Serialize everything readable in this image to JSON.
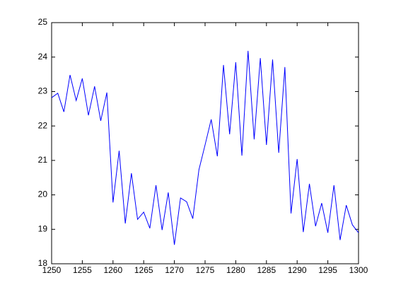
{
  "chart_data": {
    "type": "line",
    "x": [
      1250,
      1251,
      1252,
      1253,
      1254,
      1255,
      1256,
      1257,
      1258,
      1259,
      1260,
      1261,
      1262,
      1263,
      1264,
      1265,
      1266,
      1267,
      1268,
      1269,
      1270,
      1271,
      1272,
      1273,
      1274,
      1275,
      1276,
      1277,
      1278,
      1279,
      1280,
      1281,
      1282,
      1283,
      1284,
      1285,
      1286,
      1287,
      1288,
      1289,
      1290,
      1291,
      1292,
      1293,
      1294,
      1295,
      1296,
      1297,
      1298,
      1299,
      1300
    ],
    "series": [
      {
        "color": "#0000ff",
        "values": [
          22.82,
          22.95,
          22.41,
          23.48,
          22.74,
          23.38,
          22.31,
          23.15,
          22.15,
          22.97,
          19.78,
          21.28,
          19.17,
          20.63,
          19.29,
          19.5,
          19.03,
          20.28,
          18.98,
          20.07,
          18.55,
          19.91,
          19.8,
          19.31,
          20.73,
          21.45,
          22.19,
          21.12,
          23.77,
          21.76,
          23.85,
          21.14,
          24.18,
          21.61,
          23.97,
          21.45,
          23.93,
          21.22,
          23.71,
          19.46,
          21.04,
          18.92,
          20.32,
          19.09,
          19.76,
          18.9,
          20.28,
          18.69,
          19.7,
          19.13,
          18.9
        ]
      }
    ],
    "xlim": [
      1250,
      1300
    ],
    "xticks": [
      1250,
      1255,
      1260,
      1265,
      1270,
      1275,
      1280,
      1285,
      1290,
      1295,
      1300
    ],
    "ylim": [
      18,
      25
    ],
    "yticks": [
      18,
      19,
      20,
      21,
      22,
      23,
      24,
      25
    ]
  }
}
